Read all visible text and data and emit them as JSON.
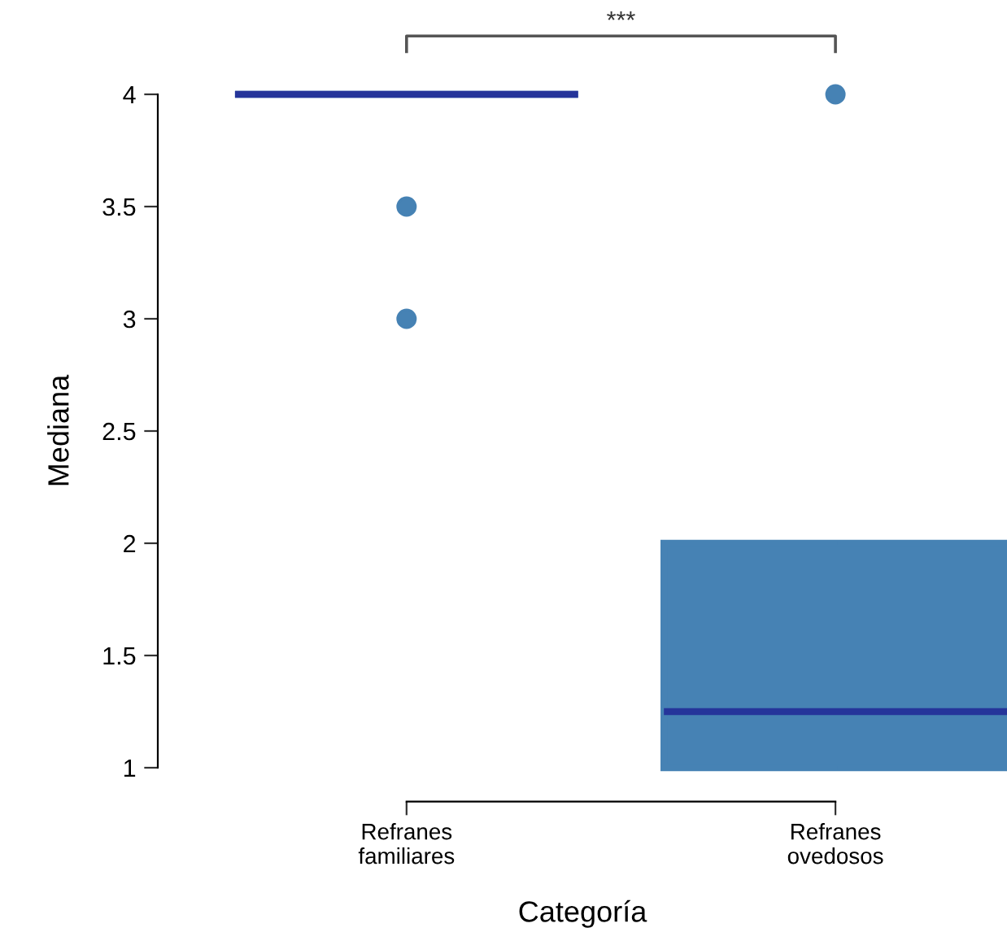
{
  "chart_data": {
    "type": "box",
    "xlabel": "Categoría",
    "ylabel": "Mediana",
    "categories": [
      "Refranes\nfamiliares",
      "Refranes\novedosos"
    ],
    "boxes": [
      {
        "low": 4,
        "q1": 4,
        "median": 4,
        "q3": 4,
        "high": 4,
        "outliers": [
          3.5,
          3
        ]
      },
      {
        "low": 1,
        "q1": 1,
        "median": 1.25,
        "q3": 2,
        "high": 2,
        "outliers": [
          4
        ]
      }
    ],
    "color": "#4682b4",
    "ylim": [
      1,
      4
    ],
    "yticks": [
      1,
      1.5,
      2,
      2.5,
      3,
      3.5,
      4
    ],
    "annotations": [
      "***"
    ],
    "grid": false
  }
}
